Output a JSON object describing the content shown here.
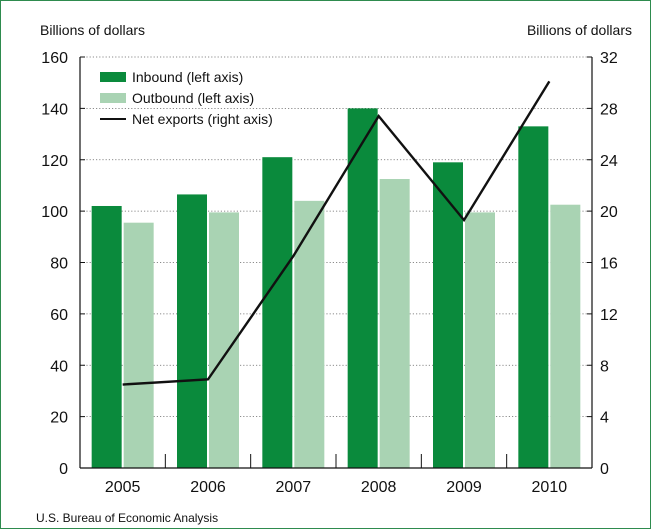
{
  "chart_data": {
    "type": "bar",
    "categories": [
      "2005",
      "2006",
      "2007",
      "2008",
      "2009",
      "2010"
    ],
    "series": [
      {
        "name": "Inbound (left axis)",
        "kind": "bar",
        "axis": "left",
        "color": "#0a8a3c",
        "values": [
          102,
          106.5,
          121,
          140,
          119,
          133
        ]
      },
      {
        "name": "Outbound (left axis)",
        "kind": "bar",
        "axis": "left",
        "color": "#a9d3b3",
        "values": [
          95.5,
          99.5,
          104,
          112.5,
          99.5,
          102.5
        ]
      },
      {
        "name": "Net exports (right axis)",
        "kind": "line",
        "axis": "right",
        "color": "#111111",
        "values": [
          6.5,
          6.9,
          16.5,
          27.4,
          19.3,
          30.1
        ]
      }
    ],
    "ylabel_left": "Billions of dollars",
    "ylabel_right": "Billions of dollars",
    "ylim_left": [
      0,
      160
    ],
    "ylim_right": [
      0,
      32
    ],
    "yticks_left": [
      0,
      20,
      40,
      60,
      80,
      100,
      120,
      140,
      160
    ],
    "yticks_right": [
      0,
      4,
      8,
      12,
      16,
      20,
      24,
      28,
      32
    ],
    "grid": "horizontal dotted",
    "legend_position": "top-left"
  },
  "source": "U.S. Bureau of Economic Analysis"
}
